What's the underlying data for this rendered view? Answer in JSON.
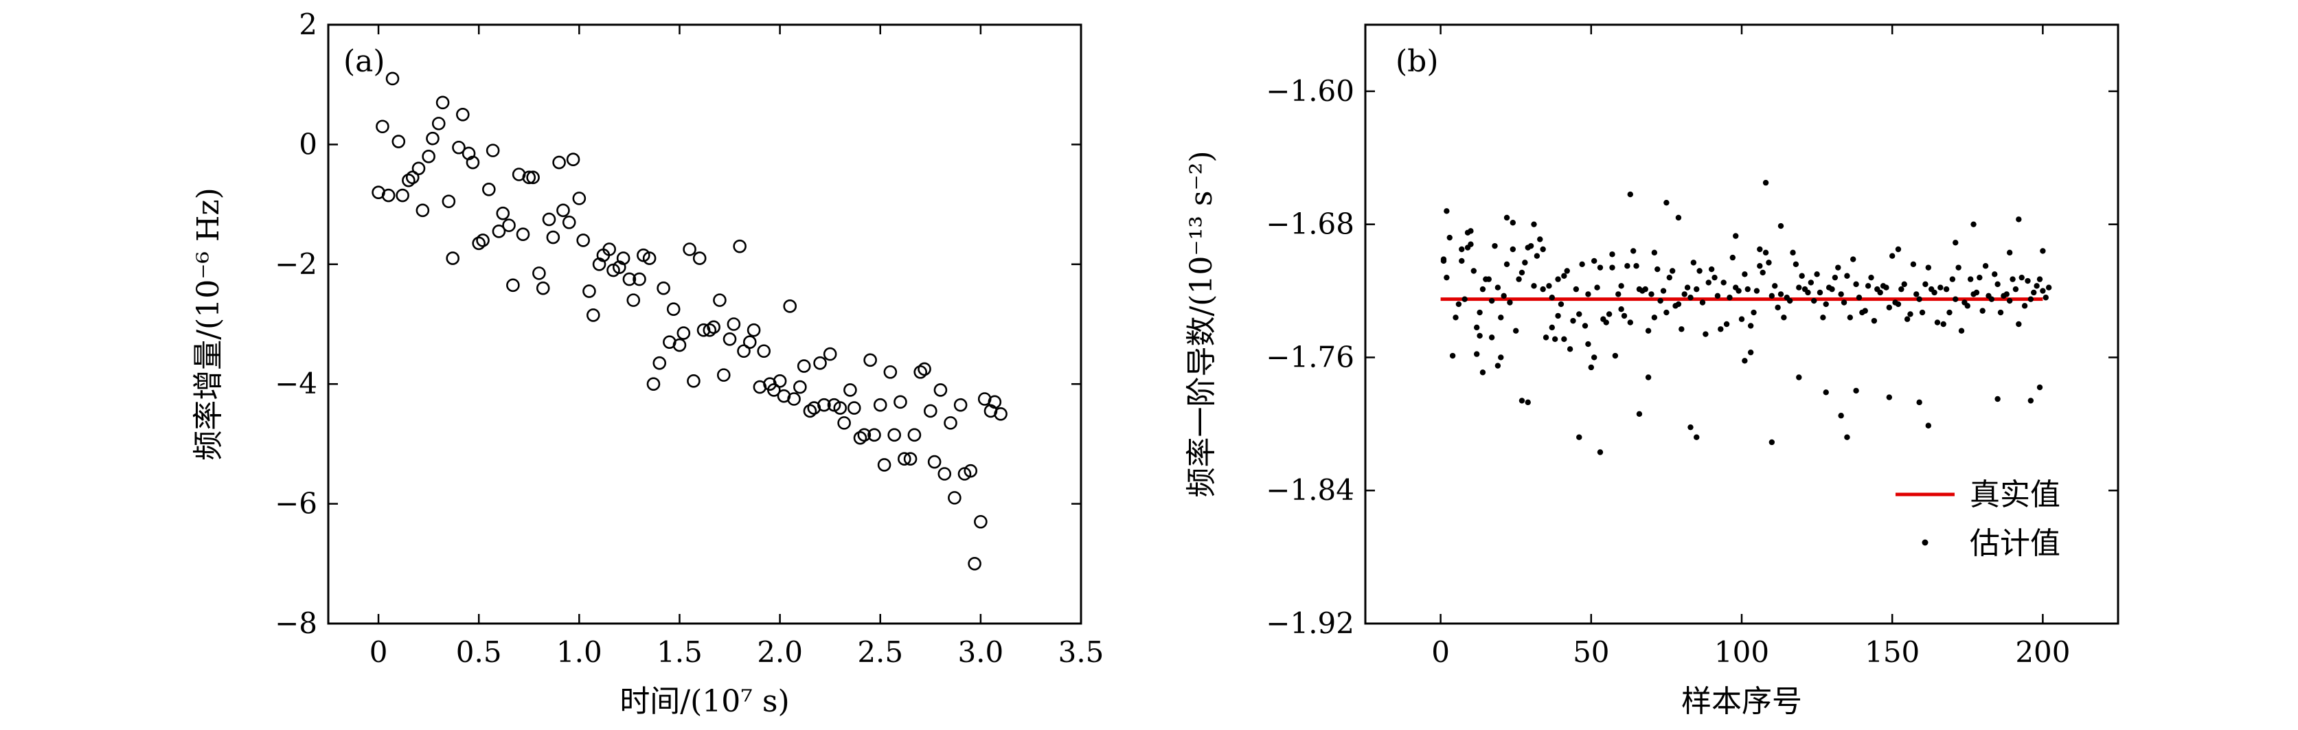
{
  "chart_data": [
    {
      "type": "scatter",
      "panel_label": "(a)",
      "xlabel": "时间/(10⁷ s)",
      "ylabel": "频率增量/(10⁻⁶ Hz)",
      "xlim": [
        -0.25,
        3.5
      ],
      "ylim": [
        -8,
        2
      ],
      "xticks": [
        0,
        0.5,
        1.0,
        1.5,
        2.0,
        2.5,
        3.0,
        3.5
      ],
      "xtick_labels": [
        "0",
        "0.5",
        "1.0",
        "1.5",
        "2.0",
        "2.5",
        "3.0",
        "3.5"
      ],
      "yticks": [
        -8,
        -6,
        -4,
        -2,
        0,
        2
      ],
      "ytick_labels": [
        "−8",
        "−6",
        "−4",
        "−2",
        "0",
        "2"
      ],
      "marker": "open-circle",
      "x": [
        0.0,
        0.02,
        0.05,
        0.07,
        0.1,
        0.12,
        0.15,
        0.17,
        0.2,
        0.22,
        0.25,
        0.27,
        0.3,
        0.32,
        0.35,
        0.37,
        0.4,
        0.42,
        0.45,
        0.47,
        0.5,
        0.52,
        0.55,
        0.57,
        0.6,
        0.62,
        0.65,
        0.67,
        0.7,
        0.72,
        0.75,
        0.77,
        0.8,
        0.82,
        0.85,
        0.87,
        0.9,
        0.92,
        0.95,
        0.97,
        1.0,
        1.02,
        1.05,
        1.07,
        1.1,
        1.12,
        1.15,
        1.17,
        1.2,
        1.22,
        1.25,
        1.27,
        1.3,
        1.32,
        1.35,
        1.37,
        1.4,
        1.42,
        1.45,
        1.47,
        1.5,
        1.52,
        1.55,
        1.57,
        1.6,
        1.62,
        1.65,
        1.67,
        1.7,
        1.72,
        1.75,
        1.77,
        1.8,
        1.82,
        1.85,
        1.87,
        1.9,
        1.92,
        1.95,
        1.97,
        2.0,
        2.02,
        2.05,
        2.07,
        2.1,
        2.12,
        2.15,
        2.17,
        2.2,
        2.22,
        2.25,
        2.27,
        2.3,
        2.32,
        2.35,
        2.37,
        2.4,
        2.42,
        2.45,
        2.47,
        2.5,
        2.52,
        2.55,
        2.57,
        2.6,
        2.62,
        2.65,
        2.67,
        2.7,
        2.72,
        2.75,
        2.77,
        2.8,
        2.82,
        2.85,
        2.87,
        2.9,
        2.92,
        2.95,
        2.97,
        3.0,
        3.02,
        3.05,
        3.07,
        3.1
      ],
      "y": [
        -0.8,
        0.3,
        -0.85,
        1.1,
        0.05,
        -0.85,
        -0.6,
        -0.55,
        -0.4,
        -1.1,
        -0.2,
        0.1,
        0.35,
        0.7,
        -0.95,
        -1.9,
        -0.05,
        0.5,
        -0.15,
        -0.3,
        -1.65,
        -1.6,
        -0.75,
        -0.1,
        -1.45,
        -1.15,
        -1.35,
        -2.35,
        -0.5,
        -1.5,
        -0.55,
        -0.55,
        -2.15,
        -2.4,
        -1.25,
        -1.55,
        -0.3,
        -1.1,
        -1.3,
        -0.25,
        -0.9,
        -1.6,
        -2.45,
        -2.85,
        -2.0,
        -1.85,
        -1.75,
        -2.1,
        -2.05,
        -1.9,
        -2.25,
        -2.6,
        -2.25,
        -1.85,
        -1.9,
        -4.0,
        -3.65,
        -2.4,
        -3.3,
        -2.75,
        -3.35,
        -3.15,
        -1.75,
        -3.95,
        -1.9,
        -3.1,
        -3.1,
        -3.05,
        -2.6,
        -3.85,
        -3.25,
        -3.0,
        -1.7,
        -3.45,
        -3.3,
        -3.1,
        -4.05,
        -3.45,
        -4.0,
        -4.1,
        -3.95,
        -4.2,
        -2.7,
        -4.25,
        -4.05,
        -3.7,
        -4.45,
        -4.4,
        -3.65,
        -4.35,
        -3.5,
        -4.35,
        -4.4,
        -4.65,
        -4.1,
        -4.4,
        -4.9,
        -4.85,
        -3.6,
        -4.85,
        -4.35,
        -5.35,
        -3.8,
        -4.85,
        -4.3,
        -5.25,
        -5.25,
        -4.85,
        -3.8,
        -3.75,
        -4.45,
        -5.3,
        -4.1,
        -5.5,
        -4.65,
        -5.9,
        -4.35,
        -5.5,
        -5.45,
        -7.0,
        -6.3,
        -4.25,
        -4.45,
        -4.3,
        -4.5
      ]
    },
    {
      "type": "scatter",
      "panel_label": "(b)",
      "xlabel": "样本序号",
      "ylabel": "频率一阶导数/(10⁻¹³ s⁻²)",
      "xlim": [
        -25,
        225
      ],
      "ylim": [
        -1.92,
        -1.56
      ],
      "xticks": [
        0,
        50,
        100,
        150,
        200
      ],
      "xtick_labels": [
        "0",
        "50",
        "100",
        "150",
        "200"
      ],
      "yticks": [
        -1.92,
        -1.84,
        -1.76,
        -1.68,
        -1.6
      ],
      "ytick_labels": [
        "−1.92",
        "−1.84",
        "−1.76",
        "−1.68",
        "−1.60"
      ],
      "true_value": -1.725,
      "true_value_x_range": [
        0,
        200
      ],
      "series": [
        {
          "name": "真实值",
          "kind": "line",
          "color": "#e00000"
        },
        {
          "name": "估计值",
          "kind": "dots",
          "color": "#000000"
        }
      ],
      "legend": {
        "position": "bottom-right",
        "labels": [
          "真实值",
          "估计值"
        ]
      },
      "estimates": [
        -1.701,
        -1.712,
        -1.688,
        -1.759,
        -1.736,
        -1.728,
        -1.702,
        -1.725,
        -1.694,
        -1.684,
        -1.708,
        -1.742,
        -1.747,
        -1.719,
        -1.713,
        -1.713,
        -1.726,
        -1.693,
        -1.718,
        -1.736,
        -1.723,
        -1.704,
        -1.727,
        -1.695,
        -1.744,
        -1.713,
        -1.709,
        -1.703,
        -1.694,
        -1.693,
        -1.717,
        -1.699,
        -1.689,
        -1.719,
        -1.748,
        -1.717,
        -1.724,
        -1.749,
        -1.713,
        -1.728,
        -1.711,
        -1.708,
        -1.755,
        -1.738,
        -1.719,
        -1.734,
        -1.704,
        -1.741,
        -1.722,
        -1.766,
        -1.702,
        -1.718,
        -1.706,
        -1.737,
        -1.739,
        -1.734,
        -1.706,
        -1.759,
        -1.722,
        -1.731,
        -1.735,
        -1.705,
        -1.739,
        -1.696,
        -1.705,
        -1.719,
        -1.72,
        -1.719,
        -1.744,
        -1.722,
        -1.736,
        -1.707,
        -1.726,
        -1.72,
        -1.733,
        -1.712,
        -1.708,
        -1.729,
        -1.728,
        -1.743,
        -1.722,
        -1.718,
        -1.724,
        -1.703,
        -1.719,
        -1.708,
        -1.727,
        -1.746,
        -1.715,
        -1.707,
        -1.712,
        -1.723,
        -1.743,
        -1.715,
        -1.74,
        -1.724,
        -1.7,
        -1.718,
        -1.72,
        -1.737,
        -1.71,
        -1.719,
        -1.741,
        -1.733,
        -1.72,
        -1.705,
        -1.709,
        -1.697,
        -1.703,
        -1.723,
        -1.717,
        -1.73,
        -1.722,
        -1.736,
        -1.724,
        -1.726,
        -1.697,
        -1.704,
        -1.718,
        -1.711,
        -1.719,
        -1.721,
        -1.715,
        -1.726,
        -1.71,
        -1.721,
        -1.736,
        -1.728,
        -1.718,
        -1.719,
        -1.712,
        -1.706,
        -1.722,
        -1.727,
        -1.711,
        -1.736,
        -1.701,
        -1.716,
        -1.724,
        -1.733,
        -1.732,
        -1.717,
        -1.712,
        -1.738,
        -1.719,
        -1.721,
        -1.717,
        -1.718,
        -1.73,
        -1.699,
        -1.727,
        -1.728,
        -1.719,
        -1.716,
        -1.737,
        -1.734,
        -1.704,
        -1.722,
        -1.725,
        -1.733,
        -1.716,
        -1.706,
        -1.719,
        -1.721,
        -1.739,
        -1.718,
        -1.74,
        -1.719,
        -1.733,
        -1.713,
        -1.725,
        -1.706,
        -1.744,
        -1.727,
        -1.729,
        -1.713,
        -1.722,
        -1.721,
        -1.712,
        -1.732,
        -1.705,
        -1.723,
        -1.725,
        -1.71,
        -1.716,
        -1.733,
        -1.723,
        -1.722,
        -1.726,
        -1.713,
        -1.719,
        -1.74,
        -1.712,
        -1.729,
        -1.714,
        -1.725,
        -1.721,
        -1.717,
        -1.713,
        -1.72,
        -1.724,
        -1.718
      ],
      "highlight_points": [
        {
          "x": 1,
          "y": -1.702
        },
        {
          "x": 2,
          "y": -1.672
        },
        {
          "x": 7,
          "y": -1.695
        },
        {
          "x": 9,
          "y": -1.685
        },
        {
          "x": 10,
          "y": -1.692
        },
        {
          "x": 12,
          "y": -1.758
        },
        {
          "x": 13,
          "y": -1.733
        },
        {
          "x": 14,
          "y": -1.769
        },
        {
          "x": 17,
          "y": -1.748
        },
        {
          "x": 19,
          "y": -1.765
        },
        {
          "x": 20,
          "y": -1.76
        },
        {
          "x": 22,
          "y": -1.676
        },
        {
          "x": 24,
          "y": -1.679
        },
        {
          "x": 27,
          "y": -1.786
        },
        {
          "x": 29,
          "y": -1.787
        },
        {
          "x": 31,
          "y": -1.68
        },
        {
          "x": 34,
          "y": -1.695
        },
        {
          "x": 37,
          "y": -1.742
        },
        {
          "x": 39,
          "y": -1.735
        },
        {
          "x": 41,
          "y": -1.749
        },
        {
          "x": 46,
          "y": -1.808
        },
        {
          "x": 49,
          "y": -1.752
        },
        {
          "x": 51,
          "y": -1.76
        },
        {
          "x": 53,
          "y": -1.817
        },
        {
          "x": 57,
          "y": -1.698
        },
        {
          "x": 60,
          "y": -1.717
        },
        {
          "x": 63,
          "y": -1.662
        },
        {
          "x": 66,
          "y": -1.794
        },
        {
          "x": 69,
          "y": -1.772
        },
        {
          "x": 71,
          "y": -1.697
        },
        {
          "x": 75,
          "y": -1.667
        },
        {
          "x": 79,
          "y": -1.676
        },
        {
          "x": 83,
          "y": -1.802
        },
        {
          "x": 85,
          "y": -1.808
        },
        {
          "x": 98,
          "y": -1.687
        },
        {
          "x": 101,
          "y": -1.762
        },
        {
          "x": 103,
          "y": -1.757
        },
        {
          "x": 106,
          "y": -1.695
        },
        {
          "x": 108,
          "y": -1.655
        },
        {
          "x": 110,
          "y": -1.811
        },
        {
          "x": 113,
          "y": -1.681
        },
        {
          "x": 119,
          "y": -1.772
        },
        {
          "x": 128,
          "y": -1.781
        },
        {
          "x": 133,
          "y": -1.795
        },
        {
          "x": 135,
          "y": -1.808
        },
        {
          "x": 138,
          "y": -1.78
        },
        {
          "x": 149,
          "y": -1.784
        },
        {
          "x": 152,
          "y": -1.695
        },
        {
          "x": 159,
          "y": -1.787
        },
        {
          "x": 162,
          "y": -1.801
        },
        {
          "x": 171,
          "y": -1.691
        },
        {
          "x": 177,
          "y": -1.68
        },
        {
          "x": 185,
          "y": -1.785
        },
        {
          "x": 189,
          "y": -1.697
        },
        {
          "x": 192,
          "y": -1.677
        },
        {
          "x": 196,
          "y": -1.786
        },
        {
          "x": 199,
          "y": -1.778
        },
        {
          "x": 200,
          "y": -1.696
        }
      ]
    }
  ]
}
